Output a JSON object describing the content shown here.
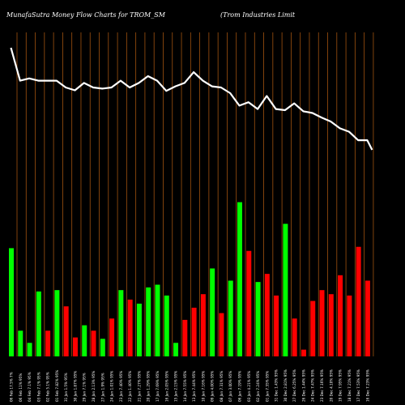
{
  "header": {
    "left": "MunafaSutra  Money Flow  Charts for TROM_SM",
    "right": "(Trom Industries Limit"
  },
  "colors": {
    "background": "#000000",
    "grid": "#a0520f",
    "up": "#00ff00",
    "down": "#ff0000",
    "line": "#ffffff"
  },
  "chart_data": {
    "type": "bar",
    "title": "MunafaSutra  Money Flow  Charts for TROM_SM",
    "subtitle": "(Trom Industries Limit",
    "grid": true,
    "categories": [
      "06 Feb 17.5% 7%",
      "06 Feb 11% 95%",
      "04 Feb 7.1% 95%",
      "03 Feb 7.1% 95%",
      "02 Feb 5.1% 95%",
      "01 Feb 7.82% 95%",
      "31 Jan 1.5% 95%",
      "30 Jan 1.87% 95%",
      "29 Jan 7.1% 95%",
      "28 Jan 2.13% 95%",
      "27 Jan 1.9% 95%",
      "24 Jan 1.01% 95%",
      "23 Jan 7.40% 95%",
      "22 Jan 1.40% 95%",
      "21 Jan 7.27% 95%",
      "20 Jan 1.29% 95%",
      "17 Jan 7.69% 95%",
      "16 Jan 2.05% 95%",
      "15 Jan 2.15% 95%",
      "14 Jan 7.55% 95%",
      "13 Jan 7.44% 95%",
      "10 Jan 7.16% 95%",
      "09 Jan 4.00% 95%",
      "08 Jan 7.31% 95%",
      "07 Jan 3.00% 95%",
      "06 Jan 7.19% 95%",
      "03 Jan 4.21% 95%",
      "02 Jan 7.24% 95%",
      "01 Jan 7.35% 95%",
      "31 Dec 1.43% 95%",
      "30 Dec 2.81% 95%",
      "27 Dec 6.25% 95%",
      "26 Dec 1.44% 95%",
      "24 Dec 7.47% 95%",
      "23 Dec 7.16% 95%",
      "20 Dec 4.10% 95%",
      "19 Dec 7.95% 95%",
      "18 Dec 7.21% 95%",
      "17 Dec 7.53% 95%",
      "16 Dec 7.23% 95%"
    ],
    "direction": [
      "up",
      "up",
      "up",
      "up",
      "down",
      "up",
      "down",
      "down",
      "up",
      "down",
      "up",
      "down",
      "up",
      "down",
      "up",
      "up",
      "up",
      "up",
      "up",
      "down",
      "down",
      "down",
      "up",
      "down",
      "up",
      "up",
      "down",
      "up",
      "down",
      "down",
      "up",
      "down",
      "down",
      "down",
      "down",
      "down",
      "down",
      "down",
      "down",
      "down"
    ],
    "series": [
      {
        "values": [
          80,
          19,
          10,
          48,
          19,
          49,
          37,
          14,
          23,
          19,
          13,
          28,
          49,
          42,
          39,
          51,
          53,
          45,
          10,
          27,
          36,
          46,
          65,
          32,
          56,
          114,
          78,
          55,
          61,
          45,
          98,
          28,
          5,
          41,
          49,
          46,
          60,
          45,
          81,
          56
        ]
      }
    ],
    "line": [
      10,
      68,
      64,
      68,
      68,
      68,
      80,
      85,
      72,
      80,
      82,
      80,
      68,
      80,
      72,
      60,
      68,
      86,
      78,
      72,
      53,
      68,
      78,
      80,
      90,
      112,
      106,
      118,
      95,
      118,
      120,
      108,
      122,
      125,
      133,
      140,
      152,
      158,
      173,
      173
    ],
    "line_end": 190
  }
}
